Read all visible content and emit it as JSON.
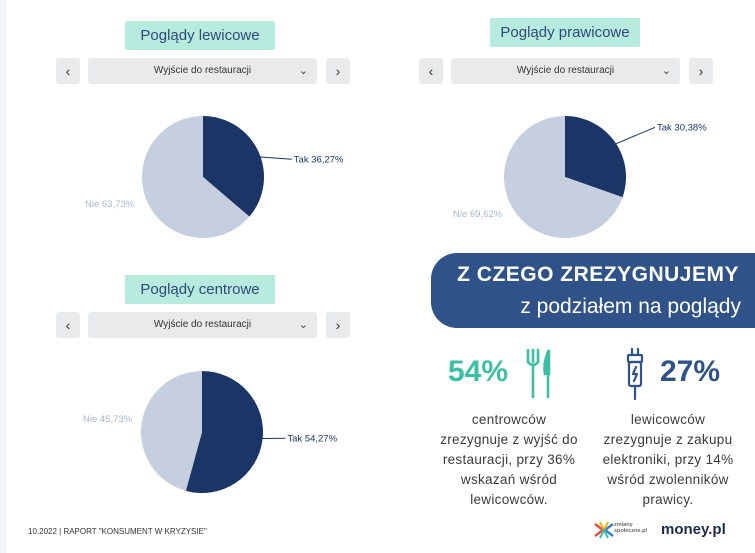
{
  "panels": [
    {
      "title": "Poglądy lewicowe",
      "select_value": "Wyjście do restauracji",
      "prev": "‹",
      "next": "›"
    },
    {
      "title": "Poglądy prawicowe",
      "select_value": "Wyjście do restauracji",
      "prev": "‹",
      "next": "›"
    },
    {
      "title": "Poglądy centrowe",
      "select_value": "Wyjście do restauracji",
      "prev": "‹",
      "next": "›"
    }
  ],
  "chart_data": [
    {
      "type": "pie",
      "title": "Poglądy lewicowe",
      "labels": [
        "Tak",
        "Nie"
      ],
      "values": [
        36.27,
        63.73
      ],
      "data_labels": [
        "Tak 36,27%",
        "Nie 63,73%"
      ],
      "colors": [
        "#1b3566",
        "#c5cfdf"
      ]
    },
    {
      "type": "pie",
      "title": "Poglądy prawicowe",
      "labels": [
        "Tak",
        "Nie"
      ],
      "values": [
        30.38,
        69.62
      ],
      "data_labels": [
        "Tak 30,38%",
        "Nie 69,62%"
      ],
      "colors": [
        "#1b3566",
        "#c5cfdf"
      ]
    },
    {
      "type": "pie",
      "title": "Poglądy centrowe",
      "labels": [
        "Tak",
        "Nie"
      ],
      "values": [
        54.27,
        45.73
      ],
      "data_labels": [
        "Tak 54,27%",
        "Nie 45,73%"
      ],
      "colors": [
        "#1b3566",
        "#c5cfdf"
      ]
    }
  ],
  "banner": {
    "line1": "Z CZEGO ZREZYGNUJEMY",
    "line2": "z podziałem na poglądy"
  },
  "stats": [
    {
      "value": "54%",
      "icon": "fork-knife-icon",
      "color": "#3dbfa6",
      "text": [
        "centrowców",
        "zrezygnuje z wyjść do",
        "restauracji, przy 36%",
        "wskazań wśród",
        "lewicowców."
      ]
    },
    {
      "value": "27%",
      "icon": "charging-cable-icon",
      "color": "#2f5289",
      "text": [
        "lewicowców",
        "zrezygnuje z zakupu",
        "elektroniki, przy 14%",
        "wśród zwolenników",
        "prawicy."
      ]
    }
  ],
  "footer": {
    "text": "10.2022 | RAPORT \"KONSUMENT W KRYZYSIE\"",
    "logo1_line1": "zmiany",
    "logo1_line2": "społeczne.pl",
    "logo2": "money.pl"
  },
  "colors": {
    "title_bg": "#b6ebdd",
    "dark_slice": "#1b3566",
    "light_slice": "#c5cfdf",
    "banner": "#2f5289",
    "accent_teal": "#3dbfa6"
  }
}
